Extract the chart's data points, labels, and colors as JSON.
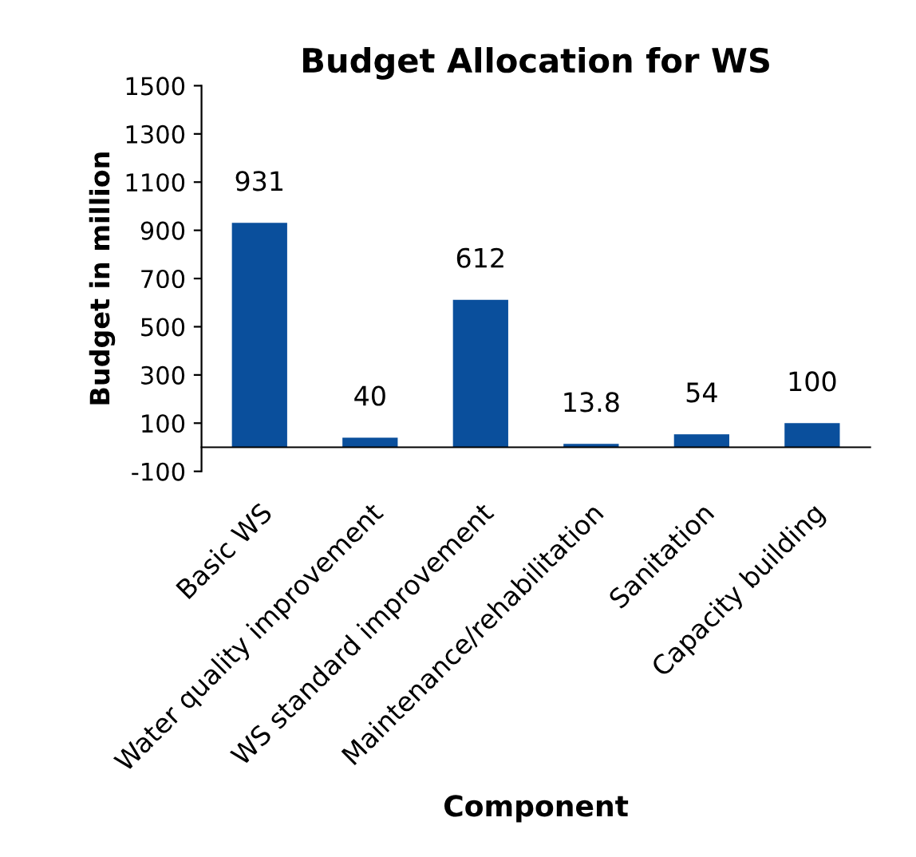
{
  "chart_data": {
    "type": "bar",
    "title": "Budget Allocation for WS",
    "xlabel": "Component",
    "ylabel": "Budget in million",
    "categories": [
      "Basic WS",
      "Water quality improvement",
      "WS standard improvement",
      "Maintenance/rehabilitation",
      "Sanitation",
      "Capacity building"
    ],
    "values": [
      931,
      40,
      612,
      13.8,
      54,
      100
    ],
    "color": "#0a4f9c",
    "ylim": [
      -100,
      1500
    ],
    "yticks": [
      -100,
      100,
      300,
      500,
      700,
      900,
      1100,
      1300,
      1500
    ],
    "data_labels": true,
    "grid": false,
    "legend": false
  }
}
